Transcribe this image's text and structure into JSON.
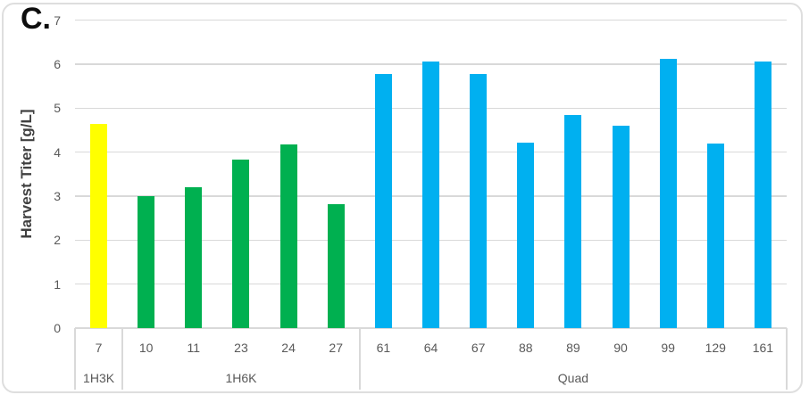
{
  "panel_label": "C.",
  "chart_data": {
    "type": "bar",
    "title": "",
    "ylabel": "Harvest Titer [g/L]",
    "xlabel": "",
    "ylim": [
      0,
      7
    ],
    "ytick_step": 1,
    "grid": "horizontal gridlines on",
    "legend_position": "none",
    "axis_note": "two-level category axis: clone numbers grouped by cell line",
    "groups": [
      {
        "label": "1H3K",
        "color": "#FFFF00",
        "categories": [
          "7"
        ],
        "values": [
          4.65
        ]
      },
      {
        "label": "1H6K",
        "color": "#00B050",
        "categories": [
          "10",
          "11",
          "23",
          "24",
          "27"
        ],
        "values": [
          3.0,
          3.2,
          3.83,
          4.18,
          2.82
        ]
      },
      {
        "label": "Quad",
        "color": "#00B0F0",
        "categories": [
          "61",
          "64",
          "67",
          "88",
          "89",
          "90",
          "99",
          "129",
          "161"
        ],
        "values": [
          5.78,
          6.05,
          5.78,
          4.22,
          4.85,
          4.6,
          6.13,
          4.2,
          6.06
        ]
      }
    ],
    "colors": {
      "gridline": "#D9D9D9",
      "axis_text": "#595959",
      "axis_title_text": "#404040",
      "panel_label_text": "#0D0D0D",
      "border": "#DEDEDE",
      "background": "#FFFFFF"
    }
  }
}
